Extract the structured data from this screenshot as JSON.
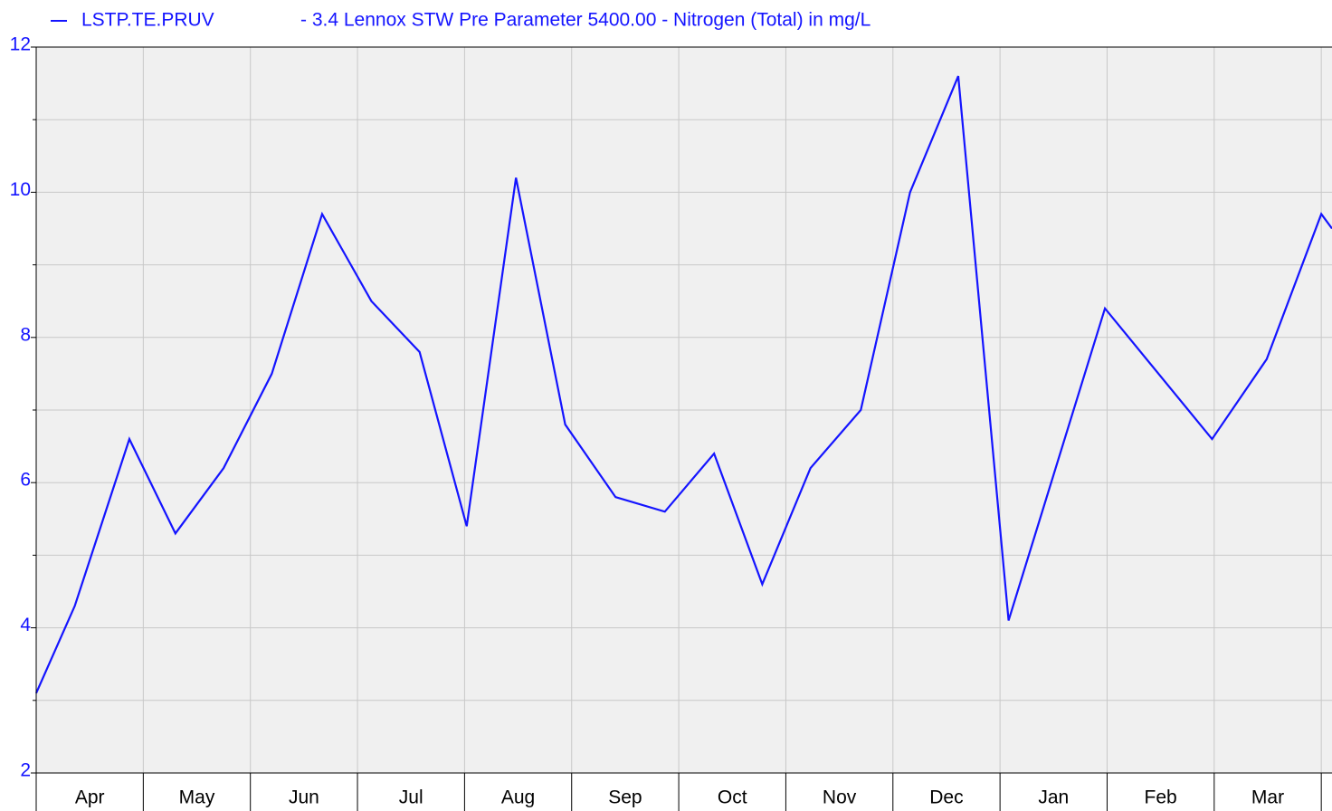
{
  "chart_data": {
    "type": "line",
    "legend_description": "- 3.4 Lennox STW  Pre Parameter 5400.00 - Nitrogen (Total) in mg/L",
    "categories": [
      "Apr",
      "May",
      "Jun",
      "Jul",
      "Aug",
      "Sep",
      "Oct",
      "Nov",
      "Dec",
      "Jan",
      "Feb",
      "Mar"
    ],
    "x": [
      0,
      0.36,
      0.87,
      1.3,
      1.75,
      2.2,
      2.67,
      3.13,
      3.58,
      4.02,
      4.48,
      4.94,
      5.41,
      5.87,
      6.33,
      6.78,
      7.23,
      7.7,
      8.16,
      8.61,
      9.08,
      9.98,
      10.98,
      11.49,
      12.0,
      12.1
    ],
    "series": [
      {
        "name": "LSTP.TE.PRUV",
        "color": "#1414ff",
        "values": [
          3.1,
          4.3,
          6.6,
          5.3,
          6.2,
          7.5,
          9.7,
          8.5,
          7.8,
          5.4,
          10.2,
          6.8,
          5.8,
          5.6,
          6.4,
          4.6,
          6.2,
          7.0,
          10.0,
          11.6,
          4.1,
          8.4,
          6.6,
          7.7,
          9.7,
          9.5
        ]
      }
    ],
    "xlim": [
      0,
      12.1
    ],
    "xticks": [
      0,
      1,
      2,
      3,
      4,
      5,
      6,
      7,
      8,
      9,
      10,
      11,
      12
    ],
    "ylim": [
      2,
      12
    ],
    "yticks": [
      2,
      4,
      6,
      8,
      10,
      12
    ],
    "y_minor_ticks": [
      3,
      5,
      7,
      9,
      11
    ],
    "grid": true,
    "legend": "top-left"
  }
}
